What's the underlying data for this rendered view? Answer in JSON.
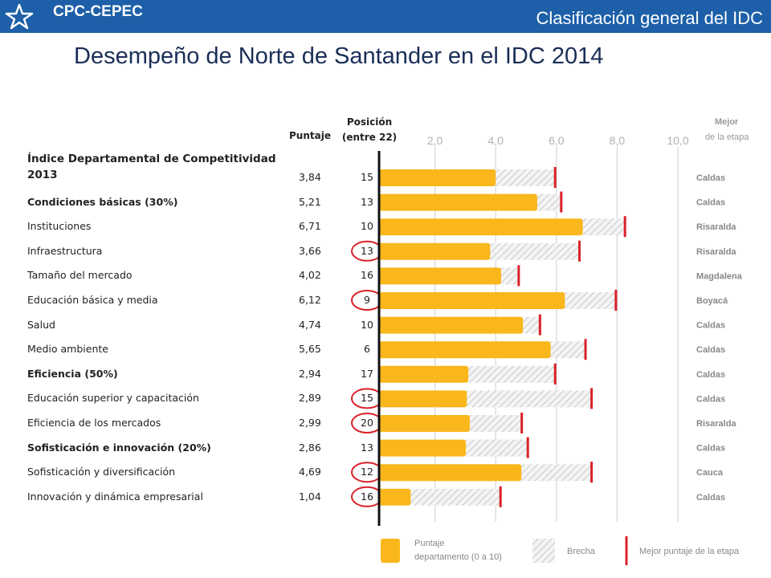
{
  "header": {
    "org": "CPC-CEPEC",
    "section": "Clasificación general del IDC",
    "logo_icon": "star-logo-icon"
  },
  "title": "Desempeño de Norte de Santander en el IDC 2014",
  "columns": {
    "puntaje": "Puntaje",
    "posicion_line1": "Posición",
    "posicion_line2": "(entre 22)",
    "mejor_line1": "Mejor",
    "mejor_line2": "de la etapa"
  },
  "rows": [
    {
      "label": "Índice Departamental de Competitividad 2013",
      "score": "3,84",
      "pos": "15",
      "best": "Caldas",
      "circled": false,
      "style": "main"
    },
    {
      "label": "Condiciones básicas (30%)",
      "score": "5,21",
      "pos": "13",
      "best": "Caldas",
      "circled": false,
      "style": "bold"
    },
    {
      "label": "Instituciones",
      "score": "6,71",
      "pos": "10",
      "best": "Risaralda",
      "circled": false,
      "style": "normal"
    },
    {
      "label": "Infraestructura",
      "score": "3,66",
      "pos": "13",
      "best": "Risaralda",
      "circled": true,
      "style": "normal"
    },
    {
      "label": "Tamaño del mercado",
      "score": "4,02",
      "pos": "16",
      "best": "Magdalena",
      "circled": false,
      "style": "normal"
    },
    {
      "label": "Educación básica y media",
      "score": "6,12",
      "pos": "9",
      "best": "Boyacá",
      "circled": true,
      "style": "normal"
    },
    {
      "label": "Salud",
      "score": "4,74",
      "pos": "10",
      "best": "Caldas",
      "circled": false,
      "style": "normal"
    },
    {
      "label": "Medio ambiente",
      "score": "5,65",
      "pos": "6",
      "best": "Caldas",
      "circled": false,
      "style": "normal"
    },
    {
      "label": "Eficiencia (50%)",
      "score": "2,94",
      "pos": "17",
      "best": "Caldas",
      "circled": false,
      "style": "bold"
    },
    {
      "label": "Educación superior y capacitación",
      "score": "2,89",
      "pos": "15",
      "best": "Caldas",
      "circled": true,
      "style": "normal"
    },
    {
      "label": "Eficiencia de los mercados",
      "score": "2,99",
      "pos": "20",
      "best": "Risaralda",
      "circled": true,
      "style": "normal"
    },
    {
      "label": "Sofisticación e innovación (20%)",
      "score": "2,86",
      "pos": "13",
      "best": "Caldas",
      "circled": false,
      "style": "bold"
    },
    {
      "label": "Sofisticación y diversificación",
      "score": "4,69",
      "pos": "12",
      "best": "Cauca",
      "circled": true,
      "style": "normal"
    },
    {
      "label": "Innovación y dinámica empresarial",
      "score": "1,04",
      "pos": "16",
      "best": "Caldas",
      "circled": true,
      "style": "normal"
    }
  ],
  "chart_data": {
    "type": "bar",
    "orientation": "horizontal",
    "categories": [
      "Índice Departamental de Competitividad 2013",
      "Condiciones básicas (30%)",
      "Instituciones",
      "Infraestructura",
      "Tamaño del mercado",
      "Educación básica y media",
      "Salud",
      "Medio ambiente",
      "Eficiencia (50%)",
      "Educación superior y capacitación",
      "Eficiencia de los mercados",
      "Sofisticación e innovación (20%)",
      "Sofisticación y diversificación",
      "Innovación y dinámica empresarial"
    ],
    "series": [
      {
        "name": "Puntaje departamento (0 a 10)",
        "values": [
          3.84,
          5.21,
          6.71,
          3.66,
          4.02,
          6.12,
          4.74,
          5.65,
          2.94,
          2.89,
          2.99,
          2.86,
          4.69,
          1.04
        ]
      },
      {
        "name": "Mejor puntaje de la etapa",
        "values": [
          5.8,
          6.0,
          8.1,
          6.6,
          4.6,
          7.8,
          5.3,
          6.8,
          5.8,
          7.0,
          4.7,
          4.9,
          7.0,
          4.0
        ]
      }
    ],
    "gap_label": "Brecha",
    "xticks": [
      "2,0",
      "4,0",
      "6,0",
      "8,0",
      "10,0"
    ],
    "xtick_values": [
      2,
      4,
      6,
      8,
      10
    ],
    "xlim": [
      0,
      10
    ],
    "grid": true,
    "legend_position": "bottom",
    "legend": {
      "score_line1": "Puntaje",
      "score_line2": "departamento (0 a 10)",
      "gap": "Brecha",
      "best": "Mejor puntaje de la etapa"
    },
    "colors": {
      "score": "#f9b71c",
      "gap_hatch": "#c8c8c8",
      "best_marker": "#d9222a",
      "circle": "#d9222a",
      "grid": "#d6d6d6",
      "axis": "#111111",
      "tick_text": "#b0b0b0"
    }
  }
}
